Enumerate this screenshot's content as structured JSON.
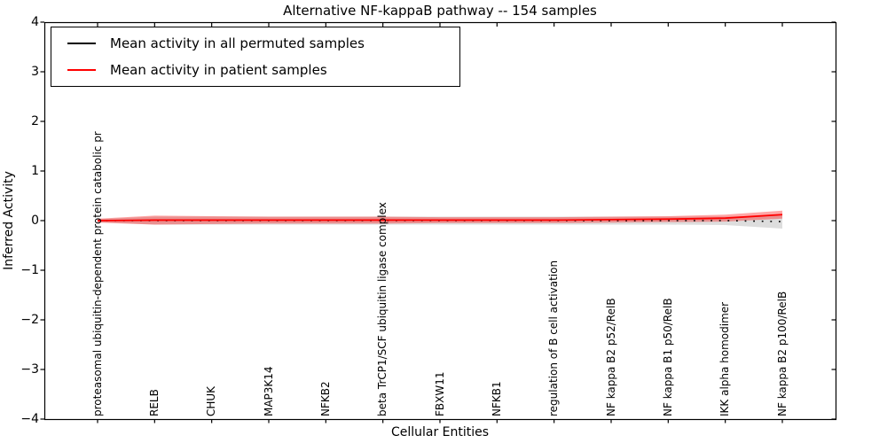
{
  "chart_data": {
    "type": "line",
    "title": "Alternative NF-kappaB pathway -- 154 samples",
    "xlabel": "Cellular Entities",
    "ylabel": "Inferred Activity",
    "ylim": [
      -4,
      4
    ],
    "yticks": [
      4,
      3,
      2,
      1,
      0,
      -1,
      -2,
      -3,
      -4
    ],
    "grid": false,
    "legend_position": "upper left",
    "categories": [
      "proteasomal ubiquitin-dependent protein catabolic pr",
      "RELB",
      "CHUK",
      "MAP3K14",
      "NFKB2",
      "beta TrCP1/SCF ubiquitin ligase complex",
      "FBXW11",
      "NFKB1",
      "regulation of B cell activation",
      "NF kappa B2 p52/RelB",
      "NF kappa B1 p50/RelB",
      "IKK alpha homodimer",
      "NF kappa B2 p100/RelB"
    ],
    "series": [
      {
        "name": "Mean activity in all permuted samples",
        "color": "#000000",
        "style": "dotted",
        "values": [
          0,
          0,
          0,
          0,
          0,
          0,
          0,
          0,
          0,
          0,
          0,
          0,
          -0.02
        ]
      },
      {
        "name": "Mean activity in patient samples",
        "color": "#ff0000",
        "style": "solid",
        "values": [
          0,
          0.01,
          0.01,
          0.01,
          0.01,
          0.01,
          0.01,
          0.01,
          0.01,
          0.02,
          0.03,
          0.05,
          0.12
        ]
      }
    ],
    "bands": [
      {
        "name": "permuted-std-band",
        "color": "rgba(120,120,120,0.25)",
        "upper": [
          0.03,
          0.08,
          0.08,
          0.08,
          0.08,
          0.08,
          0.08,
          0.08,
          0.08,
          0.08,
          0.08,
          0.08,
          0.1
        ],
        "lower": [
          -0.03,
          -0.08,
          -0.08,
          -0.08,
          -0.08,
          -0.08,
          -0.08,
          -0.08,
          -0.08,
          -0.08,
          -0.08,
          -0.09,
          -0.16
        ]
      },
      {
        "name": "patient-std-band",
        "color": "rgba(255,0,0,0.35)",
        "upper": [
          0.04,
          0.1,
          0.09,
          0.08,
          0.08,
          0.08,
          0.07,
          0.07,
          0.07,
          0.08,
          0.09,
          0.12,
          0.2
        ],
        "lower": [
          -0.04,
          -0.08,
          -0.07,
          -0.06,
          -0.06,
          -0.06,
          -0.05,
          -0.05,
          -0.05,
          -0.04,
          -0.03,
          -0.02,
          0.04
        ]
      }
    ]
  },
  "legend": {
    "items": [
      {
        "label": "Mean activity in all permuted samples",
        "color": "#000000"
      },
      {
        "label": "Mean activity in patient samples",
        "color": "#ff0000"
      }
    ]
  }
}
